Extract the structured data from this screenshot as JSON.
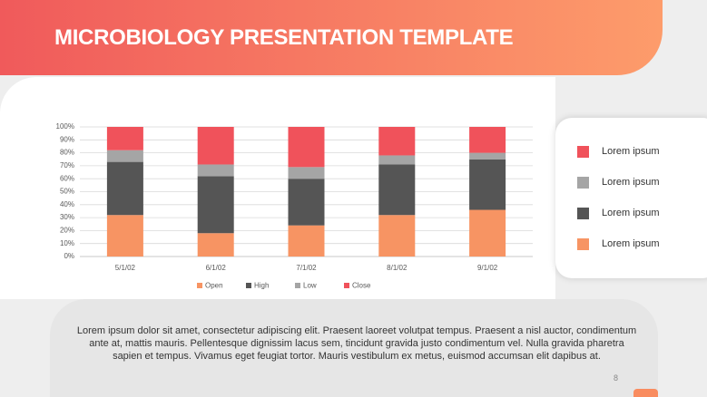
{
  "header": {
    "title": "MICROBIOLOGY PRESENTATION TEMPLATE"
  },
  "chart_data": {
    "type": "stacked_bar",
    "categories": [
      "5/1/02",
      "6/1/02",
      "7/1/02",
      "8/1/02",
      "9/1/02"
    ],
    "series": [
      {
        "name": "Open",
        "color": "#f79463",
        "values": [
          32,
          18,
          24,
          32,
          36
        ]
      },
      {
        "name": "High",
        "color": "#555555",
        "values": [
          41,
          44,
          36,
          39,
          39
        ]
      },
      {
        "name": "Low",
        "color": "#a5a5a5",
        "values": [
          9,
          9,
          9,
          7,
          5
        ]
      },
      {
        "name": "Close",
        "color": "#f0525b",
        "values": [
          18,
          29,
          31,
          22,
          20
        ]
      }
    ],
    "ylim": [
      0,
      100
    ],
    "yticks": [
      {
        "value": 0,
        "label": "0%"
      },
      {
        "value": 10,
        "label": "10%"
      },
      {
        "value": 20,
        "label": "20%"
      },
      {
        "value": 30,
        "label": "30%"
      },
      {
        "value": 40,
        "label": "40%"
      },
      {
        "value": 50,
        "label": "50%"
      },
      {
        "value": 60,
        "label": "60%"
      },
      {
        "value": 70,
        "label": "70%"
      },
      {
        "value": 80,
        "label": "80%"
      },
      {
        "value": 90,
        "label": "90%"
      },
      {
        "value": 100,
        "label": "100%"
      }
    ],
    "grid": true
  },
  "side_legend": {
    "items": [
      {
        "label": "Lorem ipsum",
        "color": "#f0525b"
      },
      {
        "label": "Lorem ipsum",
        "color": "#a5a5a5"
      },
      {
        "label": "Lorem ipsum",
        "color": "#555555"
      },
      {
        "label": "Lorem ipsum",
        "color": "#f79463"
      }
    ]
  },
  "body": {
    "text": "Lorem ipsum dolor sit amet, consectetur adipiscing elit. Praesent laoreet volutpat tempus. Praesent a nisl auctor, condimentum ante at, mattis mauris. Pellentesque dignissim lacus sem, tincidunt gravida justo condimentum vel. Nulla gravida pharetra sapien et tempus. Vivamus eget feugiat tortor. Mauris vestibulum ex metus, euismod accumsan elit dapibus at."
  },
  "footer": {
    "page": "8"
  }
}
